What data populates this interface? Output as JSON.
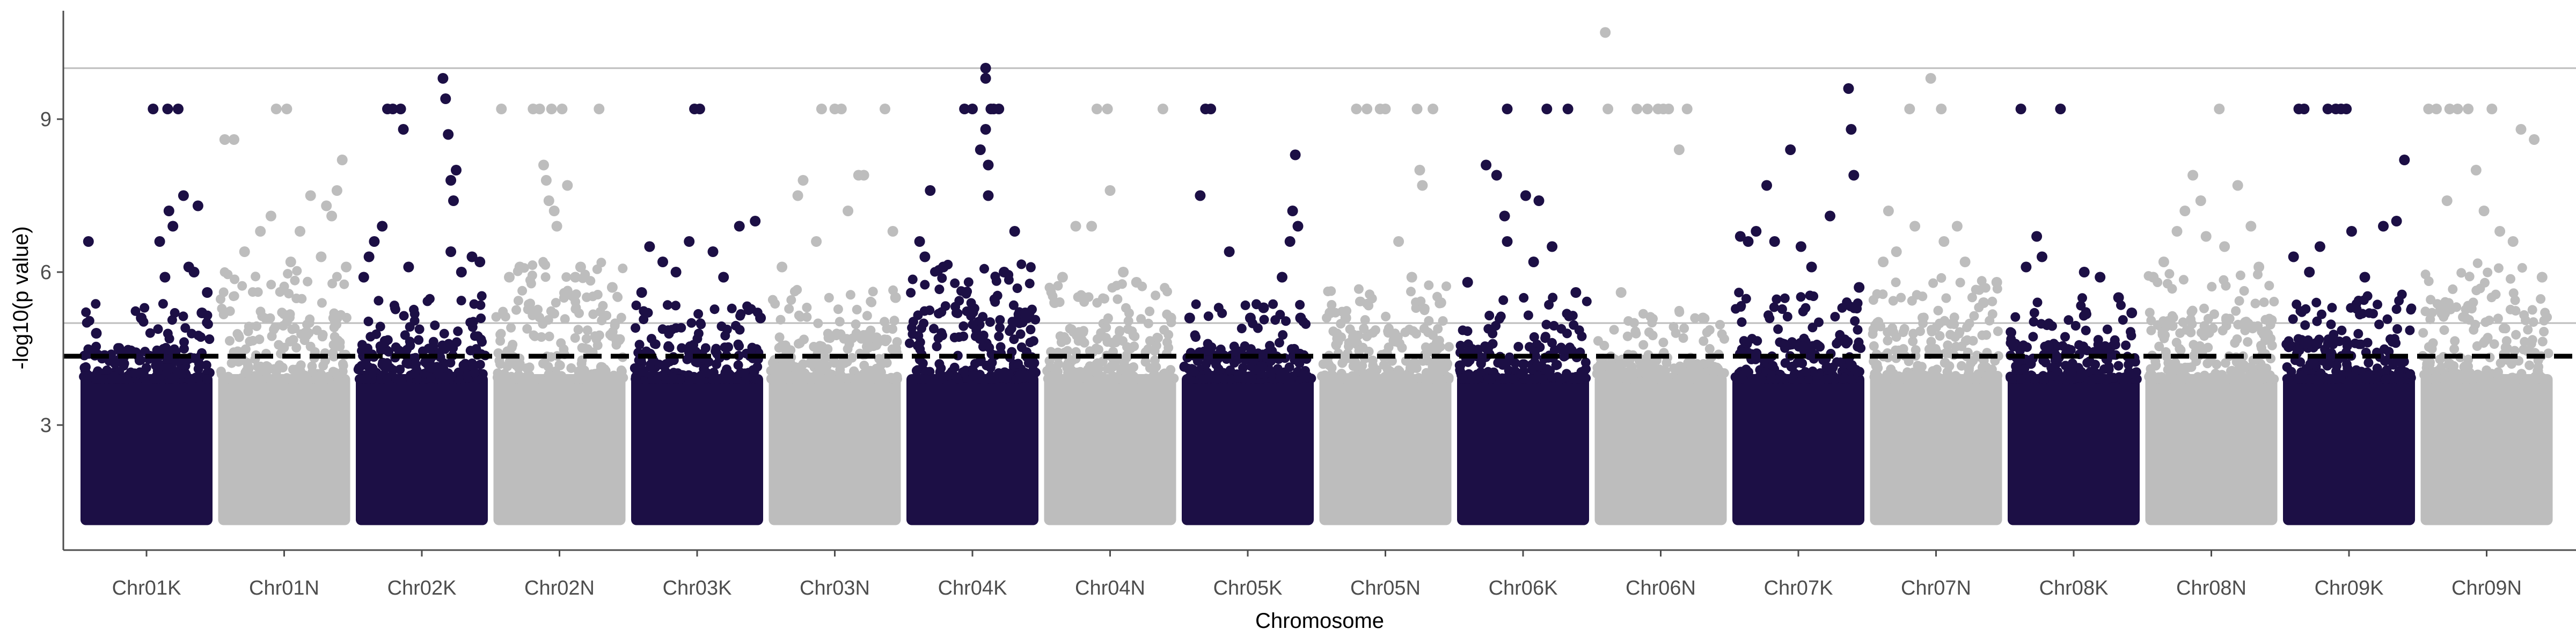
{
  "chart_data": {
    "type": "scatter",
    "subtype": "manhattan",
    "title": "",
    "xlabel": "Chromosome",
    "ylabel": "-log10(p value)",
    "categories": [
      "Chr01K",
      "Chr01N",
      "Chr02K",
      "Chr02N",
      "Chr03K",
      "Chr03N",
      "Chr04K",
      "Chr04N",
      "Chr05K",
      "Chr05N",
      "Chr06K",
      "Chr06N",
      "Chr07K",
      "Chr07N",
      "Chr08K",
      "Chr08N",
      "Chr09K",
      "Chr09N"
    ],
    "ylim": [
      0,
      10.8
    ],
    "yticks": [
      3,
      6,
      9
    ],
    "grid": false,
    "legend": "none",
    "colors": [
      "#1c0f45",
      "#bdbdbd"
    ],
    "threshold_lines": [
      {
        "value": 4.35,
        "style": "dashed",
        "color": "#000000"
      },
      {
        "value": 5.0,
        "style": "solid",
        "color": "#bdbdbd"
      },
      {
        "value": 10.0,
        "style": "solid",
        "color": "#bdbdbd"
      }
    ],
    "point_floor": 1.1,
    "dense_band_top": [
      4.2,
      4.9,
      4.4,
      5.1,
      4.3,
      4.5,
      5.0,
      4.6,
      4.2,
      4.6,
      4.3,
      4.1,
      4.4,
      4.7,
      4.3,
      4.8,
      4.4,
      5.0
    ],
    "peak_points": [
      [
        [
          0.06,
          6.6
        ],
        [
          0.12,
          4.8
        ],
        [
          0.34,
          4.4
        ],
        [
          0.46,
          5.1
        ],
        [
          0.55,
          9.2
        ],
        [
          0.6,
          6.6
        ],
        [
          0.64,
          5.9
        ],
        [
          0.67,
          7.2
        ],
        [
          0.7,
          6.9
        ],
        [
          0.74,
          9.2
        ],
        [
          0.78,
          7.5
        ],
        [
          0.82,
          6.1
        ],
        [
          0.86,
          6.0
        ],
        [
          0.89,
          7.3
        ],
        [
          0.92,
          5.2
        ],
        [
          0.96,
          5.6
        ],
        [
          0.66,
          9.2
        ]
      ],
      [
        [
          0.05,
          8.6
        ],
        [
          0.12,
          8.6
        ],
        [
          0.2,
          6.4
        ],
        [
          0.32,
          6.8
        ],
        [
          0.4,
          7.1
        ],
        [
          0.44,
          9.2
        ],
        [
          0.52,
          9.2
        ],
        [
          0.55,
          6.2
        ],
        [
          0.62,
          6.8
        ],
        [
          0.7,
          7.5
        ],
        [
          0.78,
          6.3
        ],
        [
          0.82,
          7.3
        ],
        [
          0.86,
          7.1
        ],
        [
          0.9,
          7.6
        ],
        [
          0.94,
          8.2
        ],
        [
          0.97,
          6.1
        ]
      ],
      [
        [
          0.06,
          5.9
        ],
        [
          0.1,
          6.3
        ],
        [
          0.14,
          6.6
        ],
        [
          0.2,
          6.9
        ],
        [
          0.24,
          9.2
        ],
        [
          0.28,
          9.2
        ],
        [
          0.34,
          9.2
        ],
        [
          0.36,
          8.8
        ],
        [
          0.4,
          6.1
        ],
        [
          0.66,
          9.8
        ],
        [
          0.68,
          9.4
        ],
        [
          0.7,
          8.7
        ],
        [
          0.72,
          7.8
        ],
        [
          0.74,
          7.4
        ],
        [
          0.76,
          8.0
        ],
        [
          0.72,
          6.4
        ],
        [
          0.8,
          6.0
        ],
        [
          0.88,
          6.3
        ],
        [
          0.94,
          6.2
        ]
      ],
      [
        [
          0.06,
          9.2
        ],
        [
          0.12,
          5.9
        ],
        [
          0.2,
          6.1
        ],
        [
          0.3,
          9.2
        ],
        [
          0.35,
          9.2
        ],
        [
          0.38,
          8.1
        ],
        [
          0.4,
          7.8
        ],
        [
          0.42,
          7.4
        ],
        [
          0.44,
          9.2
        ],
        [
          0.46,
          7.2
        ],
        [
          0.48,
          6.9
        ],
        [
          0.52,
          9.2
        ],
        [
          0.56,
          7.7
        ],
        [
          0.62,
          5.9
        ],
        [
          0.66,
          6.1
        ],
        [
          0.8,
          9.2
        ],
        [
          0.9,
          5.7
        ]
      ],
      [
        [
          0.08,
          5.6
        ],
        [
          0.14,
          6.5
        ],
        [
          0.24,
          6.2
        ],
        [
          0.34,
          6.0
        ],
        [
          0.44,
          6.6
        ],
        [
          0.48,
          9.2
        ],
        [
          0.52,
          9.2
        ],
        [
          0.62,
          6.4
        ],
        [
          0.7,
          5.9
        ],
        [
          0.82,
          6.9
        ],
        [
          0.94,
          7.0
        ],
        [
          0.98,
          5.1
        ]
      ],
      [
        [
          0.1,
          6.1
        ],
        [
          0.22,
          7.5
        ],
        [
          0.26,
          7.8
        ],
        [
          0.36,
          6.6
        ],
        [
          0.4,
          9.2
        ],
        [
          0.5,
          9.2
        ],
        [
          0.55,
          9.2
        ],
        [
          0.6,
          7.2
        ],
        [
          0.68,
          7.9
        ],
        [
          0.72,
          7.9
        ],
        [
          0.88,
          9.2
        ],
        [
          0.94,
          6.8
        ],
        [
          0.96,
          5.5
        ]
      ],
      [
        [
          0.1,
          6.6
        ],
        [
          0.14,
          6.3
        ],
        [
          0.18,
          7.6
        ],
        [
          0.28,
          6.1
        ],
        [
          0.44,
          9.2
        ],
        [
          0.5,
          9.2
        ],
        [
          0.56,
          8.4
        ],
        [
          0.6,
          10.0
        ],
        [
          0.6,
          9.8
        ],
        [
          0.6,
          8.8
        ],
        [
          0.62,
          8.1
        ],
        [
          0.62,
          7.5
        ],
        [
          0.64,
          9.2
        ],
        [
          0.66,
          9.2
        ],
        [
          0.7,
          9.2
        ],
        [
          0.74,
          6.0
        ],
        [
          0.82,
          6.8
        ],
        [
          0.9,
          5.2
        ]
      ],
      [
        [
          0.08,
          5.4
        ],
        [
          0.14,
          5.9
        ],
        [
          0.24,
          6.9
        ],
        [
          0.3,
          5.5
        ],
        [
          0.36,
          6.9
        ],
        [
          0.4,
          9.2
        ],
        [
          0.48,
          9.2
        ],
        [
          0.5,
          7.6
        ],
        [
          0.6,
          6.0
        ],
        [
          0.7,
          5.8
        ],
        [
          0.9,
          9.2
        ],
        [
          0.96,
          5.1
        ]
      ],
      [
        [
          0.06,
          5.1
        ],
        [
          0.14,
          7.5
        ],
        [
          0.18,
          9.2
        ],
        [
          0.22,
          9.2
        ],
        [
          0.36,
          6.4
        ],
        [
          0.52,
          5.1
        ],
        [
          0.62,
          5.3
        ],
        [
          0.76,
          5.9
        ],
        [
          0.82,
          6.6
        ],
        [
          0.84,
          7.2
        ],
        [
          0.86,
          8.3
        ],
        [
          0.88,
          6.9
        ],
        [
          0.9,
          5.1
        ]
      ],
      [
        [
          0.08,
          5.2
        ],
        [
          0.2,
          5.1
        ],
        [
          0.28,
          9.2
        ],
        [
          0.36,
          9.2
        ],
        [
          0.46,
          9.2
        ],
        [
          0.5,
          9.2
        ],
        [
          0.6,
          6.6
        ],
        [
          0.7,
          5.9
        ],
        [
          0.74,
          9.2
        ],
        [
          0.76,
          8.0
        ],
        [
          0.78,
          7.7
        ],
        [
          0.86,
          9.2
        ],
        [
          0.92,
          5.4
        ]
      ],
      [
        [
          0.08,
          5.8
        ],
        [
          0.22,
          8.1
        ],
        [
          0.3,
          7.9
        ],
        [
          0.36,
          7.1
        ],
        [
          0.38,
          6.6
        ],
        [
          0.38,
          9.2
        ],
        [
          0.52,
          7.5
        ],
        [
          0.58,
          6.2
        ],
        [
          0.62,
          7.4
        ],
        [
          0.68,
          9.2
        ],
        [
          0.72,
          6.5
        ],
        [
          0.84,
          9.2
        ],
        [
          0.9,
          5.6
        ]
      ],
      [
        [
          0.08,
          10.7
        ],
        [
          0.1,
          9.2
        ],
        [
          0.2,
          5.6
        ],
        [
          0.32,
          9.2
        ],
        [
          0.4,
          9.2
        ],
        [
          0.48,
          9.2
        ],
        [
          0.52,
          9.2
        ],
        [
          0.56,
          9.2
        ],
        [
          0.64,
          8.4
        ],
        [
          0.7,
          9.2
        ],
        [
          0.82,
          5.1
        ]
      ],
      [
        [
          0.06,
          6.7
        ],
        [
          0.12,
          6.6
        ],
        [
          0.18,
          6.8
        ],
        [
          0.26,
          7.7
        ],
        [
          0.32,
          6.6
        ],
        [
          0.44,
          8.4
        ],
        [
          0.52,
          6.5
        ],
        [
          0.6,
          6.1
        ],
        [
          0.74,
          7.1
        ],
        [
          0.88,
          9.6
        ],
        [
          0.9,
          8.8
        ],
        [
          0.92,
          7.9
        ],
        [
          0.96,
          5.7
        ]
      ],
      [
        [
          0.1,
          6.2
        ],
        [
          0.14,
          7.2
        ],
        [
          0.2,
          6.4
        ],
        [
          0.3,
          9.2
        ],
        [
          0.34,
          6.9
        ],
        [
          0.46,
          9.8
        ],
        [
          0.54,
          9.2
        ],
        [
          0.56,
          6.6
        ],
        [
          0.66,
          6.9
        ],
        [
          0.72,
          6.2
        ],
        [
          0.86,
          5.4
        ],
        [
          0.96,
          5.8
        ]
      ],
      [
        [
          0.1,
          9.2
        ],
        [
          0.14,
          6.1
        ],
        [
          0.22,
          6.7
        ],
        [
          0.26,
          6.3
        ],
        [
          0.4,
          9.2
        ],
        [
          0.58,
          6.0
        ],
        [
          0.7,
          5.9
        ],
        [
          0.84,
          5.5
        ],
        [
          0.94,
          5.2
        ]
      ],
      [
        [
          0.06,
          5.9
        ],
        [
          0.14,
          6.2
        ],
        [
          0.24,
          6.8
        ],
        [
          0.3,
          7.2
        ],
        [
          0.36,
          7.9
        ],
        [
          0.42,
          7.4
        ],
        [
          0.46,
          6.7
        ],
        [
          0.56,
          9.2
        ],
        [
          0.6,
          6.5
        ],
        [
          0.7,
          7.7
        ],
        [
          0.8,
          6.9
        ],
        [
          0.86,
          6.1
        ]
      ],
      [
        [
          0.08,
          6.3
        ],
        [
          0.12,
          9.2
        ],
        [
          0.16,
          9.2
        ],
        [
          0.2,
          6.0
        ],
        [
          0.28,
          6.5
        ],
        [
          0.34,
          9.2
        ],
        [
          0.4,
          9.2
        ],
        [
          0.44,
          9.2
        ],
        [
          0.48,
          9.2
        ],
        [
          0.52,
          6.8
        ],
        [
          0.62,
          5.9
        ],
        [
          0.76,
          6.9
        ],
        [
          0.86,
          7.0
        ],
        [
          0.92,
          8.2
        ]
      ],
      [
        [
          0.06,
          9.2
        ],
        [
          0.12,
          9.2
        ],
        [
          0.2,
          7.4
        ],
        [
          0.22,
          9.2
        ],
        [
          0.28,
          9.2
        ],
        [
          0.36,
          9.2
        ],
        [
          0.42,
          8.0
        ],
        [
          0.48,
          7.2
        ],
        [
          0.54,
          9.2
        ],
        [
          0.6,
          6.8
        ],
        [
          0.7,
          6.6
        ],
        [
          0.76,
          8.8
        ],
        [
          0.86,
          8.6
        ],
        [
          0.92,
          5.9
        ]
      ]
    ]
  }
}
